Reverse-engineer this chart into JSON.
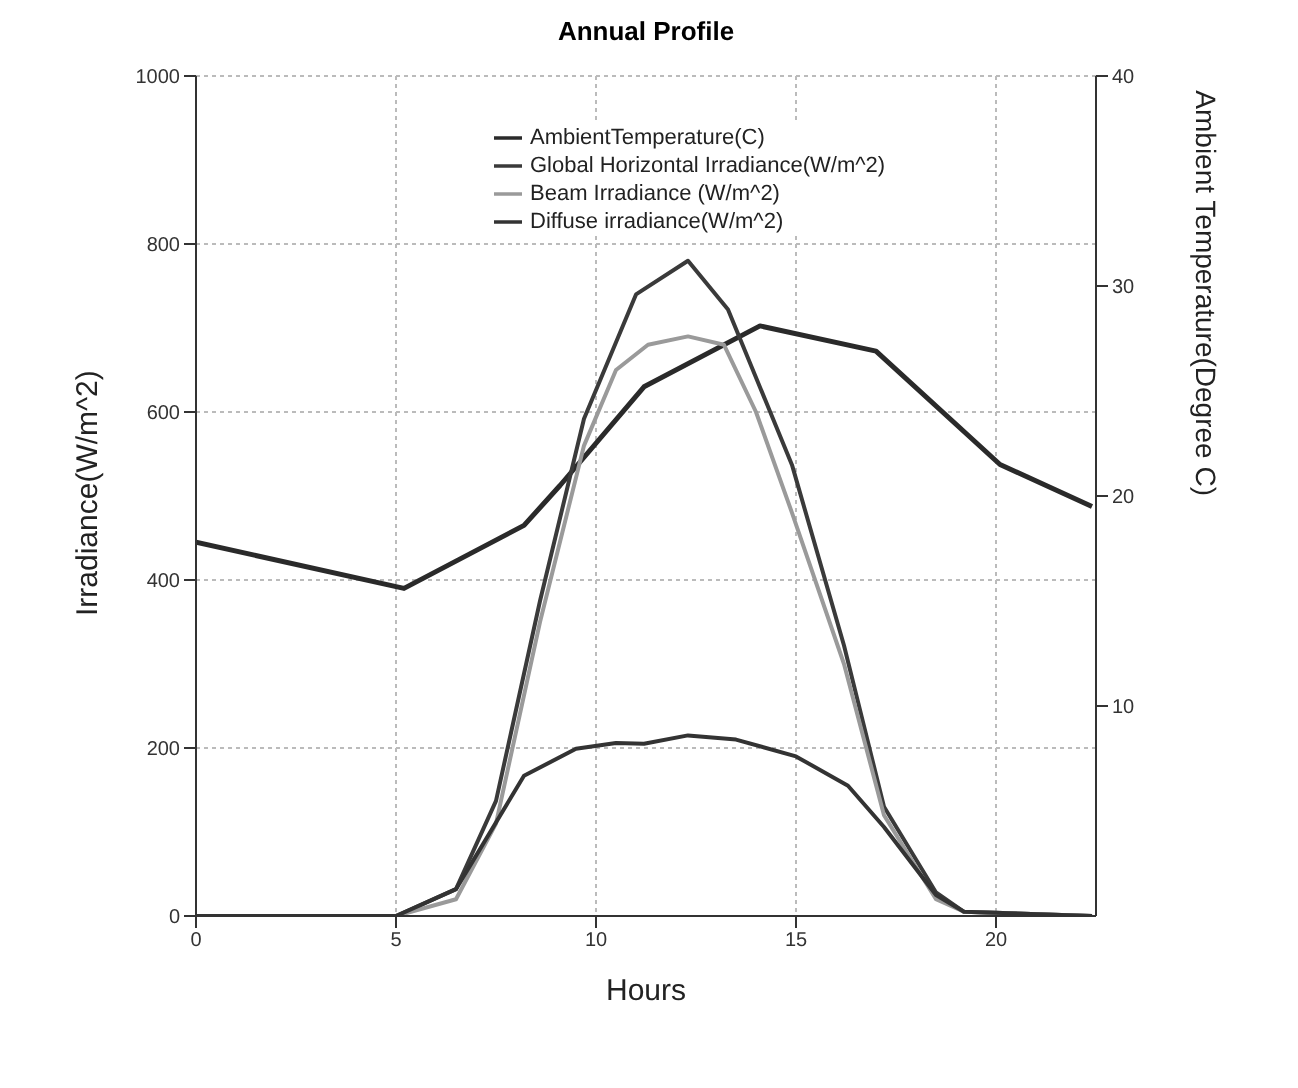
{
  "chart_data": {
    "type": "line",
    "title": "Annual Profile",
    "xlabel": "Hours",
    "ylabel": "Irradiance(W/m^2)",
    "y2label": "Ambient Temperature(Degree C)",
    "xlim": [
      0,
      22.5
    ],
    "xticks": [
      0,
      5,
      10,
      15,
      20
    ],
    "ylim": [
      0,
      1000
    ],
    "yticks": [
      0,
      200,
      400,
      600,
      800,
      1000
    ],
    "y2lim": [
      0,
      40
    ],
    "y2ticks": [
      10,
      20,
      30,
      40
    ],
    "grid": true,
    "legend": "top right",
    "marker": "none",
    "line_style": "solid",
    "series": [
      {
        "name": "AmbientTemperature(C)",
        "color": "#2a2a2a",
        "axis": "y2",
        "x": [
          0,
          5.2,
          8.2,
          9.1,
          11.2,
          14.1,
          17,
          20.1,
          22.4
        ],
        "values": [
          17.8,
          15.6,
          18.6,
          20.5,
          25.2,
          28.1,
          26.9,
          21.5,
          19.5
        ]
      },
      {
        "name": "Global Horizontal Irradiance(W/m^2)",
        "color": "#3a3a3a",
        "x": [
          0,
          5,
          6.5,
          7.5,
          8.6,
          9.7,
          11,
          12.3,
          13.3,
          14.9,
          16.2,
          17.2,
          18.5,
          19.2,
          22.4
        ],
        "values": [
          0,
          0,
          32,
          137,
          375,
          592,
          740,
          780,
          722,
          537,
          322,
          130,
          28,
          5,
          0
        ]
      },
      {
        "name": "Beam Irradiance (W/m^2)",
        "color": "#9a9a9a",
        "x": [
          0,
          5,
          6.5,
          7.5,
          8.6,
          9.7,
          10.5,
          11.3,
          12.3,
          13.2,
          14,
          14.9,
          16.2,
          17.2,
          18.5,
          19.2,
          22.4
        ],
        "values": [
          0,
          0,
          20,
          110,
          350,
          560,
          650,
          680,
          690,
          680,
          600,
          480,
          300,
          120,
          20,
          5,
          0
        ]
      },
      {
        "name": "Diffuse irradiance(W/m^2)",
        "color": "#333333",
        "x": [
          0,
          5,
          6.5,
          8.2,
          9.5,
          10.5,
          11.2,
          12.3,
          13.5,
          15,
          16.3,
          17.2,
          18.5,
          19.2,
          22.4
        ],
        "values": [
          0,
          0,
          32,
          167,
          199,
          206,
          205,
          215,
          210,
          190,
          155,
          106,
          25,
          5,
          0
        ]
      }
    ]
  }
}
